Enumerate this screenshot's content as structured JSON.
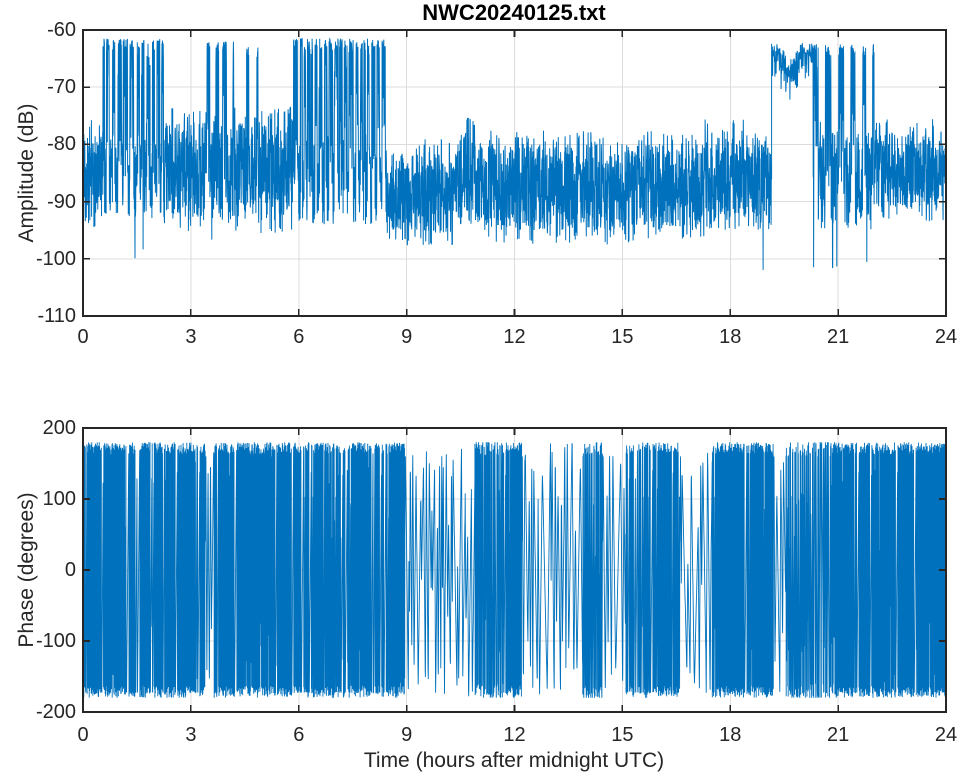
{
  "colors": {
    "line": "#0072BD",
    "axis": "#262626",
    "grid": "#dcdcdc",
    "text": "#262626",
    "title_text": "#000000",
    "background": "#ffffff"
  },
  "chart_data": [
    {
      "type": "line",
      "title": "NWC20240125.txt",
      "ylabel": "Amplitude (dB)",
      "xlabel": "",
      "series_name": "amplitude",
      "xlim": [
        0,
        24
      ],
      "ylim": [
        -110,
        -60
      ],
      "xticks": [
        0,
        3,
        6,
        9,
        12,
        15,
        18,
        21,
        24
      ],
      "yticks": [
        -60,
        -70,
        -80,
        -90,
        -100,
        -110
      ],
      "grid": true,
      "legend": "none",
      "envelope_segments": [
        {
          "t0": 0,
          "t1": 0.55,
          "type": "band",
          "top": -78.5,
          "bot": -92,
          "hair": 3
        },
        {
          "t0": 0.55,
          "t1": 2.25,
          "type": "burst",
          "hi": -61.5,
          "hi_bot": -89,
          "lo": -80,
          "lo_bot": -93,
          "period": 0.15,
          "duty": 0.58,
          "dip": -100,
          "dip_prob": 0.006
        },
        {
          "t0": 2.25,
          "t1": 3.45,
          "type": "band",
          "top": -76,
          "bot": -93,
          "hair": 2.5
        },
        {
          "t0": 3.45,
          "t1": 4.2,
          "type": "burst",
          "hi": -62,
          "hi_bot": -91,
          "lo": -77,
          "lo_bot": -94,
          "period": 0.22,
          "duty": 0.38,
          "dip": -97,
          "dip_prob": 0.004
        },
        {
          "t0": 4.2,
          "t1": 4.55,
          "type": "band",
          "top": -76,
          "bot": -93,
          "hair": 2.5
        },
        {
          "t0": 4.55,
          "t1": 4.95,
          "type": "burst",
          "hi": -63,
          "hi_bot": -91,
          "lo": -77,
          "lo_bot": -94,
          "period": 0.2,
          "duty": 0.3
        },
        {
          "t0": 4.95,
          "t1": 5.85,
          "type": "band",
          "top": -75.5,
          "bot": -93,
          "hair": 2.5,
          "dip": -100,
          "dip_prob": 0.003
        },
        {
          "t0": 5.85,
          "t1": 8.45,
          "type": "burst",
          "hi": -61.5,
          "hi_bot": -89,
          "lo": -80,
          "lo_bot": -94,
          "period": 0.13,
          "duty": 0.6,
          "dip": -96,
          "dip_prob": 0.002
        },
        {
          "t0": 8.45,
          "t1": 10.35,
          "type": "band",
          "top": -81.5,
          "bot": -95.5,
          "hair": 2.5,
          "dip": -97,
          "dip_prob": 0.002
        },
        {
          "t0": 10.35,
          "t1": 11.15,
          "type": "bump",
          "peak": -75,
          "base": -81,
          "bot": -94
        },
        {
          "t0": 11.15,
          "t1": 17.3,
          "type": "band",
          "top": -80,
          "bot": -95,
          "hair": 2.5,
          "dip": -97,
          "dip_prob": 0.001
        },
        {
          "t0": 17.3,
          "t1": 18.4,
          "type": "band",
          "top": -77.5,
          "bot": -93,
          "hair": 2
        },
        {
          "t0": 18.4,
          "t1": 19.15,
          "type": "band",
          "top": -80,
          "bot": -93,
          "hair": 2,
          "dip": -103,
          "dip_prob": 0.003
        },
        {
          "t0": 19.15,
          "t1": 20.3,
          "type": "block",
          "top": -62.5,
          "thickness": 7,
          "sag": 3.5
        },
        {
          "t0": 20.3,
          "t1": 22,
          "type": "burst",
          "hi": -62.5,
          "hi_bot": -88,
          "lo": -78,
          "lo_bot": -95,
          "period": 0.28,
          "duty": 0.42,
          "dip": -102,
          "dip_prob": 0.008
        },
        {
          "t0": 22,
          "t1": 24,
          "type": "band",
          "top": -78,
          "bot": -91,
          "hair": 2.5
        }
      ]
    },
    {
      "type": "line",
      "title": "",
      "ylabel": "Phase (degrees)",
      "xlabel": "Time (hours after midnight UTC)",
      "series_name": "phase",
      "xlim": [
        0,
        24
      ],
      "ylim": [
        -200,
        200
      ],
      "xticks": [
        0,
        3,
        6,
        9,
        12,
        15,
        18,
        21,
        24
      ],
      "yticks": [
        200,
        100,
        0,
        -100,
        -200
      ],
      "grid": true,
      "legend": "none",
      "phase_wrap_range": [
        -180,
        180
      ],
      "envelope_segments": [
        {
          "t0": 0,
          "t1": 3.4,
          "style": "solid",
          "gaps": 0.02
        },
        {
          "t0": 3.4,
          "t1": 3.65,
          "style": "sparse"
        },
        {
          "t0": 3.65,
          "t1": 5.9,
          "style": "solid",
          "gaps": 0.012
        },
        {
          "t0": 5.9,
          "t1": 8.5,
          "style": "solid",
          "gaps": 0.05
        },
        {
          "t0": 8.5,
          "t1": 8.95,
          "style": "solid",
          "gaps": 0.006
        },
        {
          "t0": 8.95,
          "t1": 10.9,
          "style": "sparse"
        },
        {
          "t0": 10.9,
          "t1": 11.7,
          "style": "medium"
        },
        {
          "t0": 11.7,
          "t1": 12.2,
          "style": "solid",
          "gaps": 0.012
        },
        {
          "t0": 12.2,
          "t1": 13.9,
          "style": "sparse"
        },
        {
          "t0": 13.9,
          "t1": 14.45,
          "style": "medium"
        },
        {
          "t0": 14.45,
          "t1": 15.1,
          "style": "sparse"
        },
        {
          "t0": 15.1,
          "t1": 16.6,
          "style": "solid",
          "gaps": 0.06
        },
        {
          "t0": 16.6,
          "t1": 17.5,
          "style": "sparse"
        },
        {
          "t0": 17.5,
          "t1": 19.2,
          "style": "solid",
          "gaps": 0.008
        },
        {
          "t0": 19.2,
          "t1": 19.55,
          "style": "sparse"
        },
        {
          "t0": 19.55,
          "t1": 20.9,
          "style": "medium"
        },
        {
          "t0": 20.9,
          "t1": 24,
          "style": "solid",
          "gaps": 0.012
        }
      ]
    }
  ]
}
